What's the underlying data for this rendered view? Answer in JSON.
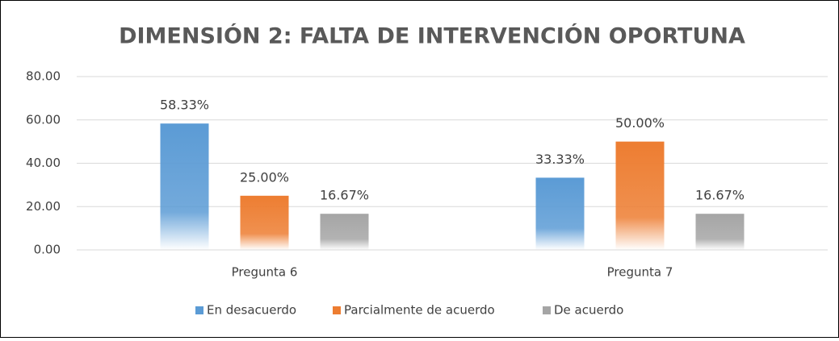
{
  "chart_data": {
    "type": "bar",
    "title": "DIMENSIÓN 2: FALTA DE INTERVENCIÓN OPORTUNA",
    "categories": [
      "Pregunta 6",
      "Pregunta 7"
    ],
    "series": [
      {
        "name": "En desacuerdo",
        "color": "#5b9bd5",
        "values": [
          58.33,
          33.33
        ],
        "value_labels": [
          "58.33%",
          "33.33%"
        ]
      },
      {
        "name": "Parcialmente de acuerdo",
        "color": "#ed7d31",
        "values": [
          25.0,
          50.0
        ],
        "value_labels": [
          "25.00%",
          "50.00%"
        ]
      },
      {
        "name": "De acuerdo",
        "color": "#a5a5a5",
        "values": [
          16.67,
          16.67
        ],
        "value_labels": [
          "16.67%",
          "16.67%"
        ]
      }
    ],
    "ylim": [
      0,
      80
    ],
    "yticks": [
      {
        "value": 0,
        "label": "0.00"
      },
      {
        "value": 20,
        "label": "20.00"
      },
      {
        "value": 40,
        "label": "40.00"
      },
      {
        "value": 60,
        "label": "60.00"
      },
      {
        "value": 80,
        "label": "80.00"
      }
    ],
    "grid": true,
    "legend": "bottom"
  }
}
